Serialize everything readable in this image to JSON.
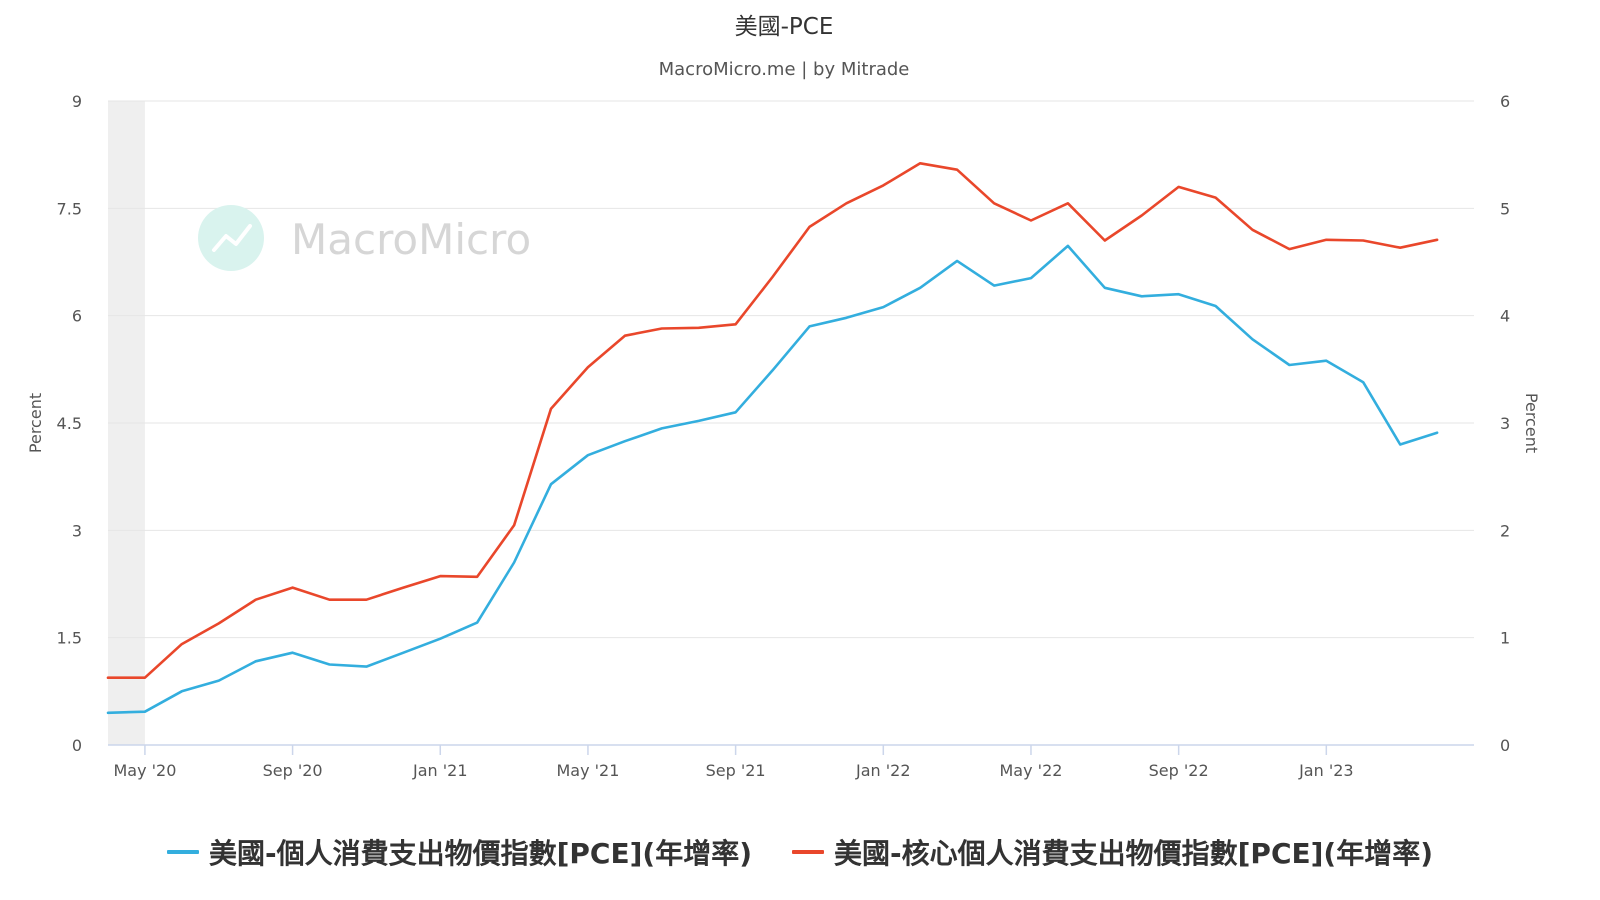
{
  "chart_data": {
    "type": "line",
    "title": "美國-PCE",
    "subtitle": "MacroMicro.me | by Mitrade",
    "watermark": "MacroMicro",
    "x_tick_labels": [
      "May '20",
      "Sep '20",
      "Jan '21",
      "May '21",
      "Sep '21",
      "Jan '22",
      "May '22",
      "Sep '22",
      "Jan '23"
    ],
    "x_tick_months": [
      "2020-05",
      "2020-09",
      "2021-01",
      "2021-05",
      "2021-09",
      "2022-01",
      "2022-05",
      "2022-09",
      "2023-01"
    ],
    "x_range": [
      "2020-04",
      "2023-05"
    ],
    "shaded_range": [
      "2020-04",
      "2020-05"
    ],
    "y_left": {
      "label": "Percent",
      "range": [
        0,
        9
      ],
      "ticks": [
        "0",
        "1.5",
        "3",
        "4.5",
        "6",
        "7.5",
        "9"
      ]
    },
    "y_right": {
      "label": "Percent",
      "range": [
        0,
        6
      ],
      "ticks": [
        "0",
        "1",
        "2",
        "3",
        "4",
        "5",
        "6"
      ]
    },
    "grid": true,
    "legend_position": "bottom",
    "series": [
      {
        "name": "美國-個人消費支出物價指數[PCE](年增率)",
        "color": "#33aede",
        "axis": "right",
        "x": [
          "2020-04",
          "2020-05",
          "2020-06",
          "2020-07",
          "2020-08",
          "2020-09",
          "2020-10",
          "2020-11",
          "2020-12",
          "2021-01",
          "2021-02",
          "2021-03",
          "2021-04",
          "2021-05",
          "2021-06",
          "2021-07",
          "2021-08",
          "2021-09",
          "2021-10",
          "2021-11",
          "2021-12",
          "2022-01",
          "2022-02",
          "2022-03",
          "2022-04",
          "2022-05",
          "2022-06",
          "2022-07",
          "2022-08",
          "2022-09",
          "2022-10",
          "2022-11",
          "2022-12",
          "2023-01",
          "2023-02",
          "2023-03",
          "2023-04"
        ],
        "values": [
          0.3,
          0.31,
          0.5,
          0.6,
          0.78,
          0.86,
          0.75,
          0.73,
          0.86,
          0.99,
          1.14,
          1.7,
          2.43,
          2.7,
          2.83,
          2.95,
          3.02,
          3.1,
          3.49,
          3.9,
          3.98,
          4.08,
          4.26,
          4.51,
          4.28,
          4.35,
          4.65,
          4.26,
          4.18,
          4.2,
          4.09,
          3.78,
          3.54,
          3.58,
          3.38,
          2.8,
          2.91
        ]
      },
      {
        "name": "美國-核心個人消費支出物價指數[PCE](年增率)",
        "color": "#e9472b",
        "axis": "left",
        "x": [
          "2020-04",
          "2020-05",
          "2020-06",
          "2020-07",
          "2020-08",
          "2020-09",
          "2020-10",
          "2020-11",
          "2020-12",
          "2021-01",
          "2021-02",
          "2021-03",
          "2021-04",
          "2021-05",
          "2021-06",
          "2021-07",
          "2021-08",
          "2021-09",
          "2021-10",
          "2021-11",
          "2021-12",
          "2022-01",
          "2022-02",
          "2022-03",
          "2022-04",
          "2022-05",
          "2022-06",
          "2022-07",
          "2022-08",
          "2022-09",
          "2022-10",
          "2022-11",
          "2022-12",
          "2023-01",
          "2023-02",
          "2023-03",
          "2023-04"
        ],
        "values": [
          0.94,
          0.94,
          1.41,
          1.7,
          2.03,
          2.2,
          2.03,
          2.03,
          2.2,
          2.36,
          2.35,
          3.07,
          4.7,
          5.28,
          5.72,
          5.82,
          5.83,
          5.88,
          6.54,
          7.24,
          7.57,
          7.82,
          8.13,
          8.04,
          7.57,
          7.33,
          7.57,
          7.05,
          7.4,
          7.8,
          7.65,
          7.2,
          6.93,
          7.06,
          7.05,
          6.95,
          7.06
        ]
      }
    ]
  }
}
